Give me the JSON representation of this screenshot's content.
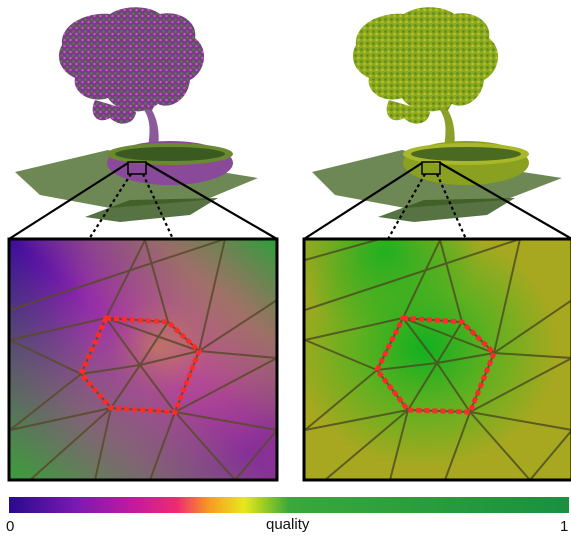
{
  "colorbar": {
    "min_label": "0",
    "max_label": "1",
    "title": "quality",
    "colors": [
      "#2a0a8a",
      "#7a1ab0",
      "#b01ab0",
      "#e0208a",
      "#f04a5a",
      "#f5a020",
      "#f5e81a",
      "#a8d020",
      "#3aa83a",
      "#1a9040"
    ]
  },
  "panels": [
    {
      "name": "left",
      "mesh_palette": [
        "#6a2a9a",
        "#9a3aa0",
        "#5a8a2a",
        "#b05aa0"
      ],
      "highlight_color": "#ff2a2a"
    },
    {
      "name": "right",
      "mesh_palette": [
        "#8aa020",
        "#a8b820",
        "#6a9a20",
        "#c0c020"
      ],
      "highlight_color": "#ff2a2a"
    }
  ]
}
